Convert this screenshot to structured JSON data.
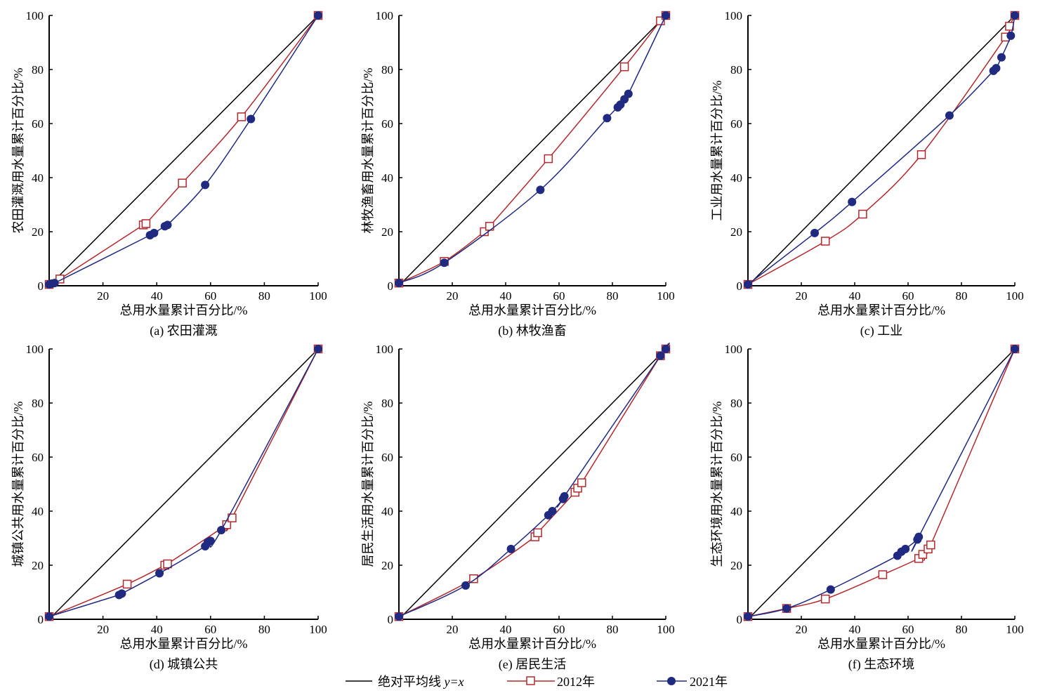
{
  "colors": {
    "equality": "#000000",
    "y2012": "#b22a2e",
    "y2021": "#1f2a80"
  },
  "legend": {
    "equality_prefix": "绝对平均线 ",
    "equality_math": "y=x",
    "s2012": "2012年",
    "s2021": "2021年"
  },
  "chart_data": [
    {
      "type": "line",
      "id": "a",
      "caption": "(a) 农田灌溉",
      "xlabel": "总用水量累计百分比/%",
      "ylabel": "农田灌溉用水量累计百分比/%",
      "xlim": [
        0,
        100
      ],
      "ylim": [
        0,
        100
      ],
      "xticks": [
        20,
        40,
        60,
        80,
        100
      ],
      "yticks": [
        0,
        20,
        40,
        60,
        80,
        100
      ],
      "series": [
        {
          "name": "2012年",
          "points": [
            [
              0,
              0.5
            ],
            [
              4,
              2.5
            ],
            [
              35,
              22.5
            ],
            [
              36,
              23
            ],
            [
              49.5,
              38
            ],
            [
              71.5,
              62.5
            ],
            [
              100,
              100
            ]
          ]
        },
        {
          "name": "2021年",
          "points": [
            [
              0,
              0.5
            ],
            [
              1,
              0.8
            ],
            [
              2,
              1
            ],
            [
              37.5,
              18.7
            ],
            [
              39,
              19.5
            ],
            [
              43,
              22
            ],
            [
              44,
              22.5
            ],
            [
              58,
              37.3
            ],
            [
              75,
              61.7
            ],
            [
              100,
              100
            ]
          ]
        }
      ]
    },
    {
      "type": "line",
      "id": "b",
      "caption": "(b) 林牧渔畜",
      "xlabel": "总用水量累计百分比/%",
      "ylabel": "林牧渔畜用水量累计百分比/%",
      "xlim": [
        0,
        100
      ],
      "ylim": [
        0,
        100
      ],
      "xticks": [
        20,
        40,
        60,
        80,
        100
      ],
      "yticks": [
        0,
        20,
        40,
        60,
        80,
        100
      ],
      "series": [
        {
          "name": "2012年",
          "points": [
            [
              0,
              1
            ],
            [
              17,
              9
            ],
            [
              32,
              20
            ],
            [
              34,
              22
            ],
            [
              56,
              47
            ],
            [
              84.5,
              81
            ],
            [
              98,
              98
            ],
            [
              100,
              100
            ]
          ]
        },
        {
          "name": "2021年",
          "points": [
            [
              0,
              1
            ],
            [
              17,
              8.5
            ],
            [
              53,
              35.5
            ],
            [
              78,
              62
            ],
            [
              82,
              66
            ],
            [
              83,
              67
            ],
            [
              84.5,
              69
            ],
            [
              86,
              71
            ],
            [
              100,
              100
            ]
          ]
        }
      ]
    },
    {
      "type": "line",
      "id": "c",
      "caption": "(c) 工业",
      "xlabel": "总用水量累计百分比/%",
      "ylabel": "工业用水量累计百分比/%",
      "xlim": [
        0,
        100
      ],
      "ylim": [
        0,
        100
      ],
      "xticks": [
        20,
        40,
        60,
        80,
        100
      ],
      "yticks": [
        0,
        20,
        40,
        60,
        80,
        100
      ],
      "series": [
        {
          "name": "2012年",
          "points": [
            [
              0,
              0.5
            ],
            [
              29,
              16.5
            ],
            [
              43,
              26.5
            ],
            [
              65,
              48.5
            ],
            [
              96.5,
              92
            ],
            [
              98,
              96
            ],
            [
              100,
              100
            ]
          ]
        },
        {
          "name": "2021年",
          "points": [
            [
              0,
              0.5
            ],
            [
              25,
              19.5
            ],
            [
              39,
              31
            ],
            [
              75.5,
              63
            ],
            [
              92,
              79.5
            ],
            [
              93,
              80.5
            ],
            [
              95,
              84.5
            ],
            [
              98.5,
              92.5
            ],
            [
              100,
              100
            ]
          ]
        }
      ]
    },
    {
      "type": "line",
      "id": "d",
      "caption": "(d) 城镇公共",
      "xlabel": "总用水量累计百分比/%",
      "ylabel": "城镇公共用水量累计百分比/%",
      "xlim": [
        0,
        100
      ],
      "ylim": [
        0,
        100
      ],
      "xticks": [
        20,
        40,
        60,
        80,
        100
      ],
      "yticks": [
        0,
        20,
        40,
        60,
        80,
        100
      ],
      "series": [
        {
          "name": "2012年",
          "points": [
            [
              0,
              1
            ],
            [
              29,
              13
            ],
            [
              43,
              20
            ],
            [
              44,
              20.5
            ],
            [
              66,
              35
            ],
            [
              68,
              37.5
            ],
            [
              100,
              100
            ]
          ]
        },
        {
          "name": "2021年",
          "points": [
            [
              0,
              1
            ],
            [
              26,
              9
            ],
            [
              27,
              9.5
            ],
            [
              41,
              17
            ],
            [
              58,
              27
            ],
            [
              59,
              28.5
            ],
            [
              60,
              29
            ],
            [
              64,
              33
            ],
            [
              100,
              100
            ]
          ]
        }
      ]
    },
    {
      "type": "line",
      "id": "e",
      "caption": "(e) 居民生活",
      "xlabel": "总用水量累计百分比/%",
      "ylabel": "居民生活用水量累计百分比/%",
      "xlim": [
        0,
        100
      ],
      "ylim": [
        0,
        100
      ],
      "xticks": [
        20,
        40,
        60,
        80,
        100
      ],
      "yticks": [
        0,
        20,
        40,
        60,
        80,
        100
      ],
      "series": [
        {
          "name": "2012年",
          "points": [
            [
              0,
              1
            ],
            [
              28,
              15
            ],
            [
              51,
              30.5
            ],
            [
              52,
              32
            ],
            [
              66,
              47
            ],
            [
              67,
              48.5
            ],
            [
              68.5,
              50.5
            ],
            [
              98,
              97.5
            ],
            [
              100,
              100
            ]
          ]
        },
        {
          "name": "2021年",
          "points": [
            [
              0,
              1
            ],
            [
              25,
              12.5
            ],
            [
              42,
              26
            ],
            [
              56,
              38.5
            ],
            [
              57.5,
              40
            ],
            [
              61.5,
              44.5
            ],
            [
              62,
              45.5
            ],
            [
              98,
              97.5
            ],
            [
              100,
              100
            ]
          ]
        }
      ]
    },
    {
      "type": "line",
      "id": "f",
      "caption": "(f) 生态环境",
      "xlabel": "总用水量累计百分比/%",
      "ylabel": "生态环境用水量累计百分比/%",
      "xlim": [
        0,
        100
      ],
      "ylim": [
        0,
        100
      ],
      "xticks": [
        20,
        40,
        60,
        80,
        100
      ],
      "yticks": [
        0,
        20,
        40,
        60,
        80,
        100
      ],
      "series": [
        {
          "name": "2012年",
          "points": [
            [
              0,
              1
            ],
            [
              14.5,
              4
            ],
            [
              29,
              7.5
            ],
            [
              50.5,
              16.5
            ],
            [
              64,
              22.5
            ],
            [
              65.5,
              24
            ],
            [
              67.5,
              26
            ],
            [
              68.5,
              27.5
            ],
            [
              100,
              100
            ]
          ]
        },
        {
          "name": "2021年",
          "points": [
            [
              0,
              1
            ],
            [
              14.5,
              4
            ],
            [
              31,
              11
            ],
            [
              56,
              23.5
            ],
            [
              57.5,
              25
            ],
            [
              59,
              26
            ],
            [
              63.5,
              29.5
            ],
            [
              64,
              30.5
            ],
            [
              100,
              100
            ]
          ]
        }
      ]
    }
  ]
}
